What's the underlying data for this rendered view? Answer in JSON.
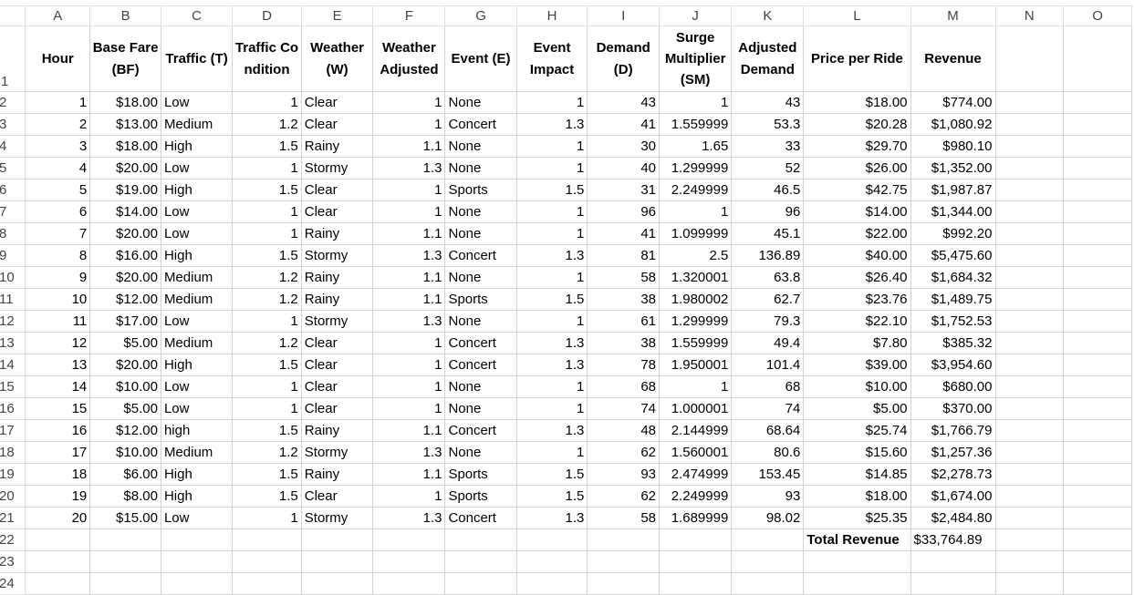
{
  "columns": [
    "A",
    "B",
    "C",
    "D",
    "E",
    "F",
    "G",
    "H",
    "I",
    "J",
    "K",
    "L",
    "M",
    "N",
    "O"
  ],
  "header_row": {
    "row": "1",
    "cells": [
      "Hour",
      "Base Fare (BF)",
      "Traffic (T)",
      "Traffic Condition",
      "Weather (W)",
      "Weather Adjusted",
      "Event (E)",
      "Event Impact",
      "Demand (D)",
      "Surge Multiplier (SM)",
      "Adjusted Demand",
      "Price per Ride",
      "Revenue",
      "",
      ""
    ]
  },
  "rows": [
    {
      "row": "2",
      "cells": [
        "1",
        "$18.00",
        "Low",
        "1",
        "Clear",
        "1",
        "None",
        "1",
        "43",
        "1",
        "43",
        "$18.00",
        "$774.00",
        "",
        ""
      ]
    },
    {
      "row": "3",
      "cells": [
        "2",
        "$13.00",
        "Medium",
        "1.2",
        "Clear",
        "1",
        "Concert",
        "1.3",
        "41",
        "1.559999",
        "53.3",
        "$20.28",
        "$1,080.92",
        "",
        ""
      ]
    },
    {
      "row": "4",
      "cells": [
        "3",
        "$18.00",
        "High",
        "1.5",
        "Rainy",
        "1.1",
        "None",
        "1",
        "30",
        "1.65",
        "33",
        "$29.70",
        "$980.10",
        "",
        ""
      ]
    },
    {
      "row": "5",
      "cells": [
        "4",
        "$20.00",
        "Low",
        "1",
        "Stormy",
        "1.3",
        "None",
        "1",
        "40",
        "1.299999",
        "52",
        "$26.00",
        "$1,352.00",
        "",
        ""
      ]
    },
    {
      "row": "6",
      "cells": [
        "5",
        "$19.00",
        "High",
        "1.5",
        "Clear",
        "1",
        "Sports",
        "1.5",
        "31",
        "2.249999",
        "46.5",
        "$42.75",
        "$1,987.87",
        "",
        ""
      ]
    },
    {
      "row": "7",
      "cells": [
        "6",
        "$14.00",
        "Low",
        "1",
        "Clear",
        "1",
        "None",
        "1",
        "96",
        "1",
        "96",
        "$14.00",
        "$1,344.00",
        "",
        ""
      ]
    },
    {
      "row": "8",
      "cells": [
        "7",
        "$20.00",
        "Low",
        "1",
        "Rainy",
        "1.1",
        "None",
        "1",
        "41",
        "1.099999",
        "45.1",
        "$22.00",
        "$992.20",
        "",
        ""
      ]
    },
    {
      "row": "9",
      "cells": [
        "8",
        "$16.00",
        "High",
        "1.5",
        "Stormy",
        "1.3",
        "Concert",
        "1.3",
        "81",
        "2.5",
        "136.89",
        "$40.00",
        "$5,475.60",
        "",
        ""
      ]
    },
    {
      "row": "10",
      "cells": [
        "9",
        "$20.00",
        "Medium",
        "1.2",
        "Rainy",
        "1.1",
        "None",
        "1",
        "58",
        "1.320001",
        "63.8",
        "$26.40",
        "$1,684.32",
        "",
        ""
      ]
    },
    {
      "row": "11",
      "cells": [
        "10",
        "$12.00",
        "Medium",
        "1.2",
        "Rainy",
        "1.1",
        "Sports",
        "1.5",
        "38",
        "1.980002",
        "62.7",
        "$23.76",
        "$1,489.75",
        "",
        ""
      ]
    },
    {
      "row": "12",
      "cells": [
        "11",
        "$17.00",
        "Low",
        "1",
        "Stormy",
        "1.3",
        "None",
        "1",
        "61",
        "1.299999",
        "79.3",
        "$22.10",
        "$1,752.53",
        "",
        ""
      ]
    },
    {
      "row": "13",
      "cells": [
        "12",
        "$5.00",
        "Medium",
        "1.2",
        "Clear",
        "1",
        "Concert",
        "1.3",
        "38",
        "1.559999",
        "49.4",
        "$7.80",
        "$385.32",
        "",
        ""
      ]
    },
    {
      "row": "14",
      "cells": [
        "13",
        "$20.00",
        "High",
        "1.5",
        "Clear",
        "1",
        "Concert",
        "1.3",
        "78",
        "1.950001",
        "101.4",
        "$39.00",
        "$3,954.60",
        "",
        ""
      ]
    },
    {
      "row": "15",
      "cells": [
        "14",
        "$10.00",
        "Low",
        "1",
        "Clear",
        "1",
        "None",
        "1",
        "68",
        "1",
        "68",
        "$10.00",
        "$680.00",
        "",
        ""
      ]
    },
    {
      "row": "16",
      "cells": [
        "15",
        "$5.00",
        "Low",
        "1",
        "Clear",
        "1",
        "None",
        "1",
        "74",
        "1.000001",
        "74",
        "$5.00",
        "$370.00",
        "",
        ""
      ]
    },
    {
      "row": "17",
      "cells": [
        "16",
        "$12.00",
        "high",
        "1.5",
        "Rainy",
        "1.1",
        "Concert",
        "1.3",
        "48",
        "2.144999",
        "68.64",
        "$25.74",
        "$1,766.79",
        "",
        ""
      ]
    },
    {
      "row": "18",
      "cells": [
        "17",
        "$10.00",
        "Medium",
        "1.2",
        "Stormy",
        "1.3",
        "None",
        "1",
        "62",
        "1.560001",
        "80.6",
        "$15.60",
        "$1,257.36",
        "",
        ""
      ]
    },
    {
      "row": "19",
      "cells": [
        "18",
        "$6.00",
        "High",
        "1.5",
        "Rainy",
        "1.1",
        "Sports",
        "1.5",
        "93",
        "2.474999",
        "153.45",
        "$14.85",
        "$2,278.73",
        "",
        ""
      ]
    },
    {
      "row": "20",
      "cells": [
        "19",
        "$8.00",
        "High",
        "1.5",
        "Clear",
        "1",
        "Sports",
        "1.5",
        "62",
        "2.249999",
        "93",
        "$18.00",
        "$1,674.00",
        "",
        ""
      ]
    },
    {
      "row": "21",
      "cells": [
        "20",
        "$15.00",
        "Low",
        "1",
        "Stormy",
        "1.3",
        "Concert",
        "1.3",
        "58",
        "1.689999",
        "98.02",
        "$25.35",
        "$2,484.80",
        "",
        ""
      ]
    }
  ],
  "total_row": {
    "row": "22",
    "label": "Total Revenue",
    "value": "$33,764.89"
  },
  "extra_rows": [
    "23",
    "24"
  ],
  "colors": {
    "grid": "#d4d4d4",
    "header_text": "#444444"
  }
}
